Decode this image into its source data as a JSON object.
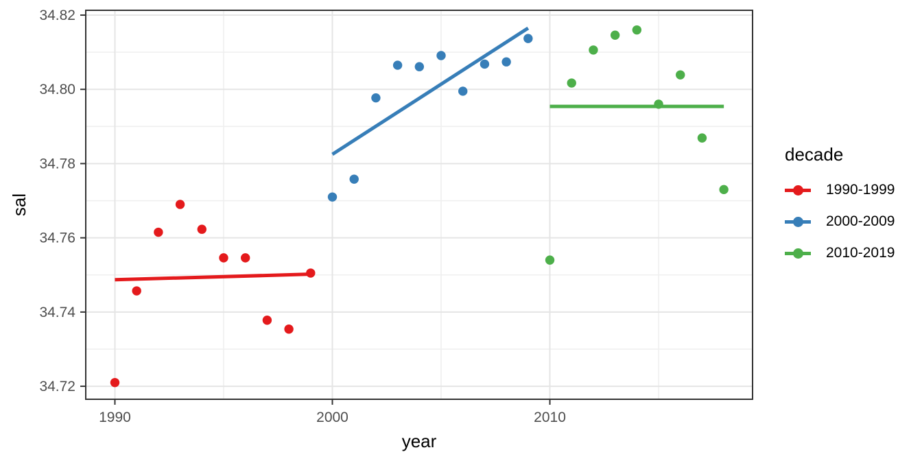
{
  "chart_data": {
    "type": "scatter",
    "title": "",
    "xlabel": "year",
    "ylabel": "sal",
    "x_domain": [
      1988.66,
      2019.32
    ],
    "y_domain": [
      34.7165,
      34.8213
    ],
    "x_tick_values": [
      1990,
      2000,
      2010
    ],
    "x_tick_labels": [
      "1990",
      "2000",
      "2010"
    ],
    "x_minor_values": [
      1995,
      2005,
      2015
    ],
    "y_tick_values": [
      34.72,
      34.74,
      34.76,
      34.78,
      34.8,
      34.82
    ],
    "y_tick_labels": [
      "34.72",
      "34.74",
      "34.76",
      "34.78",
      "34.80",
      "34.82"
    ],
    "y_minor_values": [
      34.73,
      34.75,
      34.77,
      34.79,
      34.81
    ],
    "grid_major_color": "#e5e5e5",
    "grid_minor_color": "#efefef",
    "panel_border_color": "#333333",
    "tick_color": "#333333",
    "tick_label_color": "#4d4d4d",
    "axis_title_color": "#000000",
    "legend": {
      "title": "decade",
      "position": "right"
    },
    "series": [
      {
        "name": "1990-1999",
        "color": "#e41a1c",
        "points": [
          [
            1990,
            34.721
          ],
          [
            1991,
            34.7457
          ],
          [
            1992,
            34.7615
          ],
          [
            1993,
            34.769
          ],
          [
            1994,
            34.7623
          ],
          [
            1995,
            34.7546
          ],
          [
            1996,
            34.7546
          ],
          [
            1997,
            34.7378
          ],
          [
            1998,
            34.7354
          ],
          [
            1999,
            34.7505
          ]
        ],
        "trend": [
          [
            1990,
            34.7487
          ],
          [
            1999,
            34.7502
          ]
        ]
      },
      {
        "name": "2000-2009",
        "color": "#377eb8",
        "points": [
          [
            2000,
            34.771
          ],
          [
            2001,
            34.7758
          ],
          [
            2002,
            34.7977
          ],
          [
            2003,
            34.8065
          ],
          [
            2004,
            34.8061
          ],
          [
            2005,
            34.8091
          ],
          [
            2006,
            34.7995
          ],
          [
            2007,
            34.8068
          ],
          [
            2008,
            34.8074
          ],
          [
            2009,
            34.8137
          ]
        ],
        "trend": [
          [
            2000,
            34.7825
          ],
          [
            2009,
            34.8165
          ]
        ]
      },
      {
        "name": "2010-2019",
        "color": "#4daf4a",
        "points": [
          [
            2010,
            34.754
          ],
          [
            2011,
            34.8017
          ],
          [
            2012,
            34.8106
          ],
          [
            2013,
            34.8146
          ],
          [
            2014,
            34.816
          ],
          [
            2015,
            34.796
          ],
          [
            2016,
            34.8039
          ],
          [
            2017,
            34.7869
          ],
          [
            2018,
            34.773
          ]
        ],
        "trend": [
          [
            2010,
            34.7954
          ],
          [
            2018,
            34.7954
          ]
        ]
      }
    ]
  }
}
